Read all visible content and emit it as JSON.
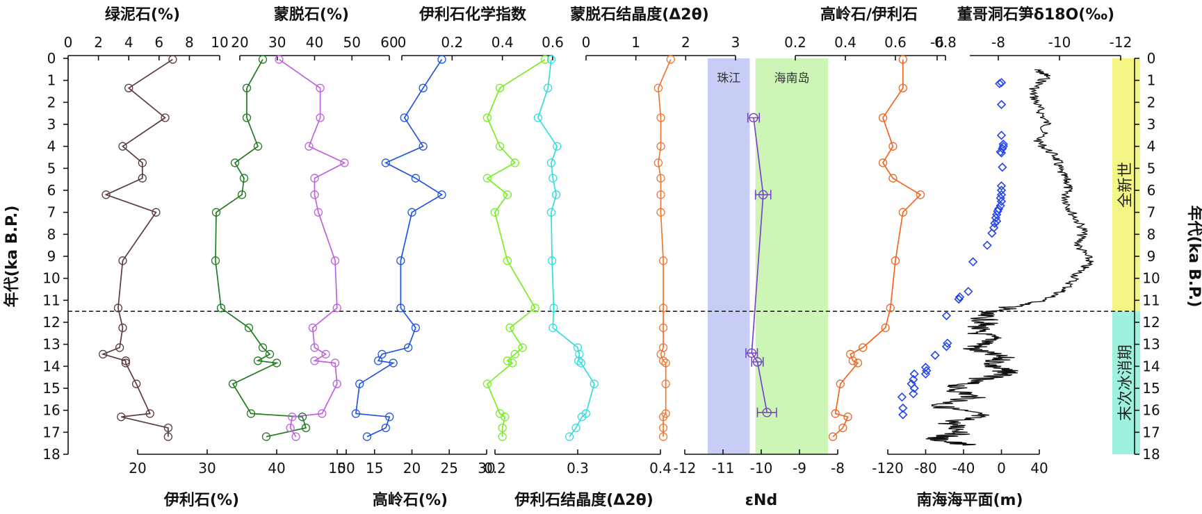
{
  "chart_data": {
    "type": "line",
    "y_axis": {
      "label": "年代(ka B.P.)",
      "range": [
        0,
        18
      ],
      "ticks": [
        0,
        1,
        2,
        3,
        4,
        5,
        6,
        7,
        8,
        9,
        10,
        11,
        12,
        13,
        14,
        15,
        16,
        17,
        18
      ],
      "reversed": true,
      "shown_on": "left and right"
    },
    "boundary_ka": 11.5,
    "age": [
      0.05,
      1.35,
      2.7,
      4.0,
      4.75,
      5.45,
      6.2,
      7.0,
      9.2,
      11.35,
      12.25,
      13.15,
      13.45,
      13.75,
      13.85,
      14.8,
      16.15,
      16.3,
      16.8,
      17.2
    ],
    "series": [
      {
        "name": "绿泥石(%)",
        "axis": "top",
        "range": [
          0,
          10
        ],
        "ticks": [
          0,
          2,
          4,
          6,
          8,
          10
        ],
        "color": "#5a3a3a",
        "values": [
          6.9,
          4.0,
          6.4,
          3.6,
          4.9,
          4.9,
          2.5,
          5.8,
          3.6,
          3.3,
          3.6,
          3.4,
          2.3,
          3.8,
          3.8,
          4.5,
          5.4,
          3.5,
          6.6,
          6.6
        ]
      },
      {
        "name": "伊利石(%)",
        "axis": "bottom",
        "range": [
          10,
          50
        ],
        "ticks": [
          20,
          30,
          40,
          50
        ],
        "color": "#1f7a1f",
        "values": [
          38.0,
          35.7,
          35.7,
          37.3,
          34.0,
          35.3,
          35.0,
          31.3,
          31.2,
          32.0,
          36.0,
          38.0,
          39.0,
          37.3,
          40.0,
          33.7,
          36.3,
          43.7,
          44.2,
          38.5
        ]
      },
      {
        "name": "蒙脱石(%)",
        "axis": "top",
        "range": [
          20,
          60
        ],
        "ticks": [
          20,
          30,
          40,
          50,
          60
        ],
        "color": "#c060e0",
        "values": [
          30.5,
          41.5,
          41.5,
          38.5,
          48.0,
          40.0,
          40.0,
          41.0,
          45.5,
          46.0,
          39.5,
          40.0,
          43.0,
          40.0,
          45.5,
          46.0,
          42.0,
          34.0,
          33.5,
          35.0
        ]
      },
      {
        "name": "高岭石(%)",
        "axis": "bottom",
        "range": [
          10,
          30
        ],
        "ticks": [
          10,
          15,
          20,
          25,
          30
        ],
        "color": "#2055dd",
        "values": [
          24.0,
          21.5,
          19.0,
          21.5,
          16.5,
          20.5,
          24.0,
          20.0,
          18.5,
          18.5,
          20.5,
          19.5,
          16.0,
          15.5,
          17.5,
          13.0,
          12.5,
          17.0,
          16.5,
          14.0
        ]
      },
      {
        "name": "伊利石化学指数",
        "axis": "top",
        "range": [
          0,
          0.6
        ],
        "ticks": [
          0,
          0.2,
          0.4,
          0.6
        ],
        "color": "#77ee22",
        "values": [
          0.57,
          0.39,
          0.34,
          0.39,
          0.45,
          0.34,
          0.42,
          0.37,
          0.42,
          0.53,
          0.43,
          0.48,
          0.45,
          0.42,
          0.44,
          0.34,
          0.39,
          0.41,
          0.4,
          0.4
        ]
      },
      {
        "name": "伊利石结晶度(Δ2θ)",
        "axis": "bottom",
        "range": [
          0.2,
          0.4
        ],
        "ticks": [
          0.2,
          0.3,
          0.4
        ],
        "color": "#33dddd",
        "values": [
          0.268,
          0.264,
          0.252,
          0.275,
          0.268,
          0.27,
          0.274,
          0.268,
          0.269,
          0.271,
          0.27,
          0.3,
          0.302,
          0.301,
          0.304,
          0.32,
          0.31,
          0.305,
          0.298,
          0.29
        ]
      },
      {
        "name": "蒙脱石结晶度(Δ2θ)",
        "axis": "top",
        "range": [
          0,
          3
        ],
        "ticks": [
          0,
          1,
          2,
          3
        ],
        "color": "#ee7733",
        "values": [
          1.7,
          1.45,
          1.5,
          1.5,
          1.45,
          1.5,
          1.5,
          1.5,
          1.55,
          1.55,
          1.55,
          1.55,
          1.5,
          1.55,
          1.6,
          1.6,
          1.6,
          1.55,
          1.55,
          1.55
        ]
      },
      {
        "name": "高岭石/伊利石",
        "axis": "top",
        "range": [
          0.2,
          0.8
        ],
        "ticks": [
          0.2,
          0.4,
          0.6,
          0.8
        ],
        "color": "#ee6622",
        "values": [
          0.63,
          0.63,
          0.55,
          0.59,
          0.55,
          0.59,
          0.7,
          0.63,
          0.6,
          0.58,
          0.56,
          0.47,
          0.42,
          0.43,
          0.45,
          0.38,
          0.36,
          0.41,
          0.39,
          0.35
        ]
      }
    ],
    "eNd": {
      "name": "εNd",
      "axis": "bottom",
      "range": [
        -12,
        -8
      ],
      "ticks": [
        -12,
        -11,
        -10,
        -9,
        -8
      ],
      "color": "#7744cc",
      "points": [
        {
          "age": 2.7,
          "value": -10.2,
          "err": 0.15
        },
        {
          "age": 6.2,
          "value": -9.95,
          "err": 0.2
        },
        {
          "age": 13.4,
          "value": -10.25,
          "err": 0.15
        },
        {
          "age": 13.8,
          "value": -10.1,
          "err": 0.15
        },
        {
          "age": 16.1,
          "value": -9.85,
          "err": 0.25
        }
      ],
      "bands": [
        {
          "label": "珠江",
          "from": -11.4,
          "to": -10.3,
          "color": "#c8cdf5"
        },
        {
          "label": "海南岛",
          "from": -10.15,
          "to": -8.25,
          "color": "#cdf5b5"
        }
      ]
    },
    "sea_level": {
      "name": "南海海平面(m)",
      "axis": "bottom",
      "range": [
        -120,
        40
      ],
      "ticks": [
        -120,
        -80,
        -40,
        0,
        40
      ],
      "color": "#2244ee",
      "points": [
        [
          1.1,
          0
        ],
        [
          1.15,
          -2
        ],
        [
          2.1,
          0
        ],
        [
          3.5,
          0
        ],
        [
          3.9,
          2
        ],
        [
          4.0,
          2
        ],
        [
          4.1,
          1
        ],
        [
          4.25,
          -1
        ],
        [
          4.3,
          0
        ],
        [
          4.95,
          1
        ],
        [
          5.8,
          0
        ],
        [
          6.0,
          0
        ],
        [
          6.2,
          0
        ],
        [
          6.35,
          -1
        ],
        [
          6.5,
          0
        ],
        [
          6.7,
          -1
        ],
        [
          6.85,
          -3
        ],
        [
          6.95,
          -4
        ],
        [
          7.1,
          -5
        ],
        [
          7.25,
          -6
        ],
        [
          7.4,
          -5
        ],
        [
          7.5,
          -7
        ],
        [
          7.7,
          -8
        ],
        [
          7.95,
          -10
        ],
        [
          8.5,
          -15
        ],
        [
          9.25,
          -30
        ],
        [
          10.6,
          -35
        ],
        [
          10.85,
          -44
        ],
        [
          10.95,
          -45
        ],
        [
          11.7,
          -58
        ],
        [
          12.95,
          -57
        ],
        [
          13.1,
          -58
        ],
        [
          13.5,
          -70
        ],
        [
          14.05,
          -80
        ],
        [
          14.2,
          -79
        ],
        [
          14.35,
          -80
        ],
        [
          14.35,
          -92
        ],
        [
          14.6,
          -93
        ],
        [
          14.8,
          -95
        ],
        [
          15.0,
          -92
        ],
        [
          15.25,
          -93
        ],
        [
          15.4,
          -105
        ],
        [
          15.9,
          -104
        ],
        [
          16.2,
          -104
        ]
      ]
    },
    "speleothem_d18O": {
      "name": "董哥洞石笋δ18O(‰)",
      "axis": "top",
      "range": [
        -4,
        -12
      ],
      "ticks": [
        -6,
        -8,
        -10,
        -12
      ],
      "color": "#111111",
      "anchors": [
        [
          0.5,
          -9.2
        ],
        [
          0.8,
          -9.6
        ],
        [
          1.5,
          -9.1
        ],
        [
          2.2,
          -9.3
        ],
        [
          3.0,
          -9.6
        ],
        [
          3.8,
          -9.3
        ],
        [
          4.5,
          -9.9
        ],
        [
          5.1,
          -10.0
        ],
        [
          5.7,
          -10.3
        ],
        [
          6.3,
          -10.2
        ],
        [
          7.0,
          -10.4
        ],
        [
          7.8,
          -10.8
        ],
        [
          8.5,
          -10.6
        ],
        [
          9.2,
          -11.0
        ],
        [
          9.8,
          -10.6
        ],
        [
          10.5,
          -10.2
        ],
        [
          11.0,
          -9.5
        ],
        [
          11.3,
          -8.5
        ],
        [
          11.6,
          -7.4
        ],
        [
          12.0,
          -7.6
        ],
        [
          12.4,
          -7.2
        ],
        [
          12.8,
          -7.9
        ],
        [
          13.2,
          -7.1
        ],
        [
          13.6,
          -8.1
        ],
        [
          14.0,
          -7.8
        ],
        [
          14.3,
          -8.4
        ],
        [
          14.6,
          -7.3
        ],
        [
          15.0,
          -6.5
        ],
        [
          15.4,
          -7.2
        ],
        [
          15.8,
          -6.0
        ],
        [
          16.2,
          -7.4
        ],
        [
          16.6,
          -6.4
        ],
        [
          17.0,
          -6.9
        ],
        [
          17.3,
          -5.9
        ],
        [
          17.6,
          -7.0
        ]
      ]
    },
    "epochs": [
      {
        "label": "全新世",
        "from": 0,
        "to": 11.5,
        "color": "#f3f585"
      },
      {
        "label": "末次冰消期",
        "from": 11.5,
        "to": 18,
        "color": "#9ef2dd"
      }
    ]
  }
}
